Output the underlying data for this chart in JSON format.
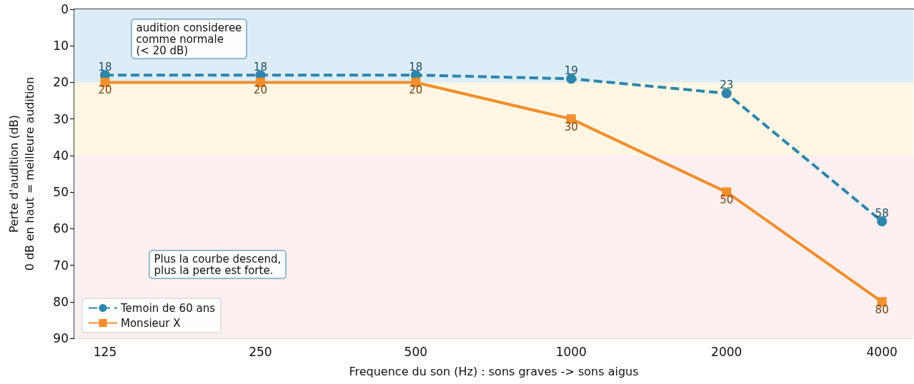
{
  "chart_data": {
    "type": "line",
    "xlabel": "Frequence du son (Hz) : sons graves -> sons aigus",
    "ylabel": "Perte d'audition (dB)\n0 dB en haut = meilleure audition",
    "x": [
      125,
      250,
      500,
      1000,
      2000,
      4000
    ],
    "series": [
      {
        "name": "Temoin de 60 ans",
        "color": "#2e86ab",
        "values": [
          18,
          18,
          18,
          19,
          23,
          58
        ],
        "marker": "circle",
        "line_style": "dashed"
      },
      {
        "name": "Monsieur X",
        "color": "#f28e2b",
        "values": [
          20,
          20,
          20,
          30,
          50,
          80
        ],
        "marker": "square",
        "line_style": "solid"
      }
    ],
    "log": "x",
    "xlim": [
      109,
      4600
    ],
    "xticks": [
      125,
      250,
      500,
      1000,
      2000,
      4000
    ],
    "ylim": [
      90,
      0
    ],
    "yticks": [
      0,
      10,
      20,
      30,
      40,
      50,
      60,
      70,
      80,
      90
    ],
    "bands": [
      {
        "axis": "y",
        "from": 0,
        "to": 20,
        "color": "#dcedf7"
      },
      {
        "axis": "y",
        "from": 20,
        "to": 40,
        "color": "#fff7e4"
      },
      {
        "axis": "y",
        "from": 40,
        "to": 90,
        "color": "#fbeff0"
      }
    ],
    "annotations": [
      "audition consideree\ncomme normale\n(< 20 dB)",
      "Plus la courbe descend,\nplus la perte est forte."
    ],
    "data_labels": true,
    "grid": true,
    "legend": "bottom left"
  }
}
